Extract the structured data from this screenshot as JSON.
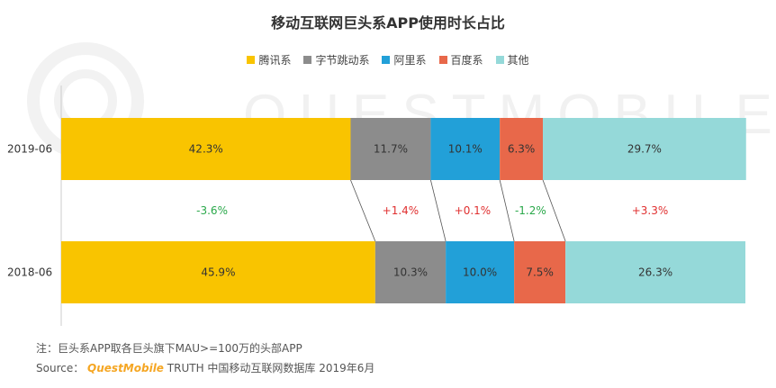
{
  "chart_data": {
    "type": "bar",
    "title": "移动互联网巨头系APP使用时长占比",
    "stacked": true,
    "orientation": "horizontal",
    "categories": [
      "2019-06",
      "2018-06"
    ],
    "series": [
      {
        "name": "腾讯系",
        "color": "#f9c400",
        "values": [
          42.3,
          45.9
        ],
        "labels": [
          "42.3%",
          "45.9%"
        ]
      },
      {
        "name": "字节跳动系",
        "color": "#8c8c8c",
        "values": [
          11.7,
          10.3
        ],
        "labels": [
          "11.7%",
          "10.3%"
        ]
      },
      {
        "name": "阿里系",
        "color": "#22a0d8",
        "values": [
          10.1,
          10.0
        ],
        "labels": [
          "10.1%",
          "10.0%"
        ]
      },
      {
        "name": "百度系",
        "color": "#e8684a",
        "values": [
          6.3,
          7.5
        ],
        "labels": [
          "6.3%",
          "7.5%"
        ]
      },
      {
        "name": "其他",
        "color": "#95d9d9",
        "values": [
          29.7,
          26.3
        ],
        "labels": [
          "29.7%",
          "26.3%"
        ]
      }
    ],
    "changes": [
      {
        "label": "-3.6%",
        "color": "#2aa84a"
      },
      {
        "label": "+1.4%",
        "color": "#e03030"
      },
      {
        "label": "+0.1%",
        "color": "#e03030"
      },
      {
        "label": "-1.2%",
        "color": "#2aa84a"
      },
      {
        "label": "+3.3%",
        "color": "#e03030"
      }
    ],
    "xlim": [
      0,
      100
    ],
    "legend_position": "top"
  },
  "watermark": "QUESTMOBILE",
  "footer": {
    "note": "注：巨头系APP取各巨头旗下MAU>=100万的头部APP",
    "source_prefix": "Source：",
    "brand": "QuestMobile",
    "source_rest": " TRUTH 中国移动互联网数据库 2019年6月"
  }
}
